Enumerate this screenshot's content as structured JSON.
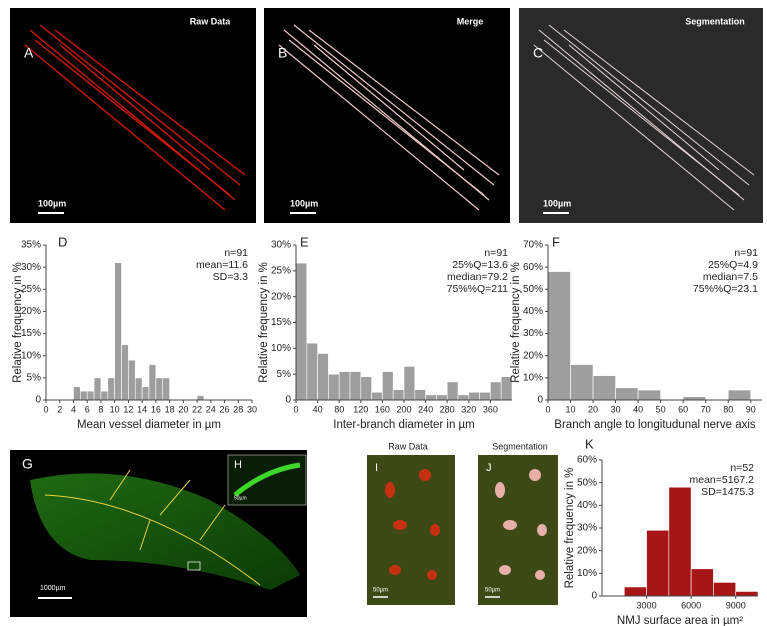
{
  "chart_data": [
    {
      "type": "histogram",
      "panel": "D",
      "xlabel": "Mean vessel diameter in µm",
      "ylabel": "Relative frequency in %",
      "bins": [
        4,
        5,
        6,
        7,
        8,
        9,
        10,
        11,
        12,
        13,
        14,
        15,
        16,
        17,
        18,
        19,
        20,
        21,
        22,
        23
      ],
      "values": [
        3,
        2,
        2,
        5,
        2,
        5,
        31,
        12.5,
        9,
        5,
        3,
        8,
        5,
        5,
        0,
        0,
        0,
        0,
        1
      ],
      "color": "#9e9e9e",
      "xlim": [
        0,
        30
      ],
      "xticks": [
        0,
        2,
        4,
        6,
        8,
        10,
        12,
        14,
        16,
        18,
        20,
        22,
        24,
        26,
        28,
        30
      ],
      "ylim": [
        0,
        35
      ],
      "yticks": [
        0,
        {
          "value": 5,
          "label": "5%"
        },
        {
          "value": 10,
          "label": "10%"
        },
        {
          "value": 15,
          "label": "15%"
        },
        {
          "value": 20,
          "label": "20%"
        },
        {
          "value": 25,
          "label": "25%"
        },
        {
          "value": 30,
          "label": "30%"
        },
        {
          "value": 35,
          "label": "35%"
        }
      ],
      "annotations": [
        "n=91",
        "mean=11.6",
        "SD=3.3"
      ]
    },
    {
      "type": "histogram",
      "panel": "E",
      "xlabel": "Inter-branch diameter in µm",
      "ylabel": "Relative frequency in %",
      "bins": [
        0,
        20,
        40,
        60,
        80,
        100,
        120,
        140,
        160,
        180,
        200,
        220,
        240,
        260,
        280,
        300,
        320,
        340,
        360,
        380,
        400
      ],
      "values": [
        26.5,
        11,
        9,
        5,
        5.5,
        5.5,
        4.5,
        1.5,
        5.5,
        2,
        6.5,
        2,
        1,
        1,
        3.5,
        1,
        1.5,
        1.5,
        3.5,
        4.5
      ],
      "color": "#9e9e9e",
      "xlim": [
        0,
        400
      ],
      "xticks": [
        0,
        40,
        80,
        120,
        160,
        200,
        240,
        280,
        320,
        360
      ],
      "ylim": [
        0,
        30
      ],
      "yticks": [
        0,
        {
          "value": 5,
          "label": "5%"
        },
        {
          "value": 10,
          "label": "10%"
        },
        {
          "value": 15,
          "label": "15%"
        },
        {
          "value": 20,
          "label": "20%"
        },
        {
          "value": 25,
          "label": "25%"
        },
        {
          "value": 30,
          "label": "30%"
        }
      ],
      "annotations": [
        "n=91",
        "25%Q=13.6",
        "median=79.2",
        "75%%Q=211"
      ]
    },
    {
      "type": "histogram",
      "panel": "F",
      "xlabel": "Branch angle to longitudunal nerve axis",
      "ylabel": "Relative frequency in %",
      "bins": [
        0,
        10,
        20,
        30,
        40,
        50,
        60,
        70,
        80,
        90
      ],
      "values": [
        58,
        16,
        11,
        5.5,
        4.5,
        0,
        1.5,
        0,
        4.5
      ],
      "color": "#9e9e9e",
      "xlim": [
        0,
        95
      ],
      "xticks": [
        0,
        10,
        20,
        30,
        40,
        50,
        60,
        70,
        80,
        90
      ],
      "ylim": [
        0,
        70
      ],
      "yticks": [
        0,
        {
          "value": 10,
          "label": "10%"
        },
        {
          "value": 20,
          "label": "20%"
        },
        {
          "value": 30,
          "label": "30%"
        },
        {
          "value": 40,
          "label": "40%"
        },
        {
          "value": 50,
          "label": "50%"
        },
        {
          "value": 60,
          "label": "60%"
        },
        {
          "value": 70,
          "label": "70%"
        }
      ],
      "annotations": [
        "n=91",
        "25%Q=4.9",
        "median=7.5",
        "75%%Q=23.1"
      ]
    },
    {
      "type": "histogram",
      "panel": "K",
      "xlabel": "NMJ surface area in µm²",
      "ylabel": "Relative frequency in %",
      "bins": [
        1500,
        3000,
        4500,
        6000,
        7500,
        9000,
        10500
      ],
      "values": [
        4,
        29,
        48,
        12,
        6,
        2
      ],
      "color": "#a61616",
      "xlim": [
        0,
        10500
      ],
      "xticks": [
        3000,
        6000,
        9000
      ],
      "ylim": [
        0,
        60
      ],
      "yticks": [
        0,
        {
          "value": 10,
          "label": "10%"
        },
        {
          "value": 20,
          "label": "20%"
        },
        {
          "value": 30,
          "label": "30%"
        },
        {
          "value": 40,
          "label": "40%"
        },
        {
          "value": 50,
          "label": "50%"
        },
        {
          "value": 60,
          "label": "60%"
        }
      ],
      "annotations": [
        "n=52",
        "mean=5167.2",
        "SD=1475.3"
      ]
    }
  ],
  "panels": {
    "A": {
      "letter": "A",
      "title": "Raw Data",
      "scale": "100µm"
    },
    "B": {
      "letter": "B",
      "title": "Merge",
      "scale": "100µm"
    },
    "C": {
      "letter": "C",
      "title": "Segmentation",
      "scale": "100µm"
    },
    "G": {
      "letter": "G",
      "scale": "1000µm"
    },
    "H": {
      "letter": "H",
      "scale": "50µm"
    },
    "I": {
      "letter": "I",
      "title": "Raw Data",
      "scale": "50µm"
    },
    "J": {
      "letter": "J",
      "title": "Segmentation",
      "scale": "50µm"
    }
  }
}
